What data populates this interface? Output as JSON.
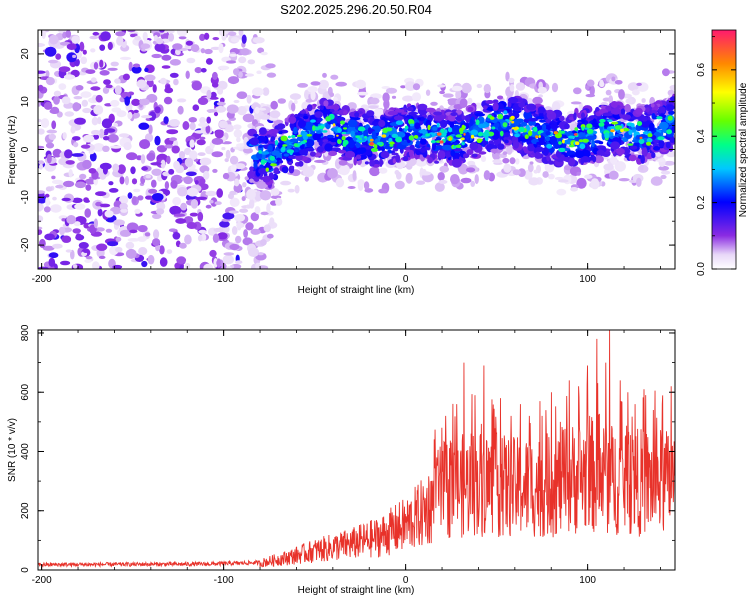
{
  "title": "S202.2025.296.20.50.R04",
  "chart_data": [
    {
      "type": "heatmap",
      "title": "S202.2025.296.20.50.R04",
      "xlabel": "Height of straight line (km)",
      "ylabel": "Frequency (Hz)",
      "xlim": [
        -202,
        148
      ],
      "ylim": [
        -25,
        25
      ],
      "xticks": [
        "-200",
        "-100",
        "0",
        "100"
      ],
      "yticks": [
        "-20",
        "-10",
        "0",
        "10",
        "20"
      ],
      "colorbar": {
        "label": "Normalized spectral amplitude",
        "range": [
          0.0,
          0.72
        ],
        "ticks": [
          "0.0",
          "0.2",
          "0.4",
          "0.6"
        ]
      },
      "features": {
        "noise_region_km": [
          -202,
          -85
        ],
        "signal_band_start_km": -85,
        "signal_center_hz": [
          [
            -85,
            0
          ],
          [
            -75,
            -2
          ],
          [
            -60,
            2
          ],
          [
            -45,
            5
          ],
          [
            -30,
            3
          ],
          [
            -15,
            2
          ],
          [
            -5,
            3
          ],
          [
            5,
            4
          ],
          [
            15,
            3
          ],
          [
            25,
            2
          ],
          [
            40,
            4
          ],
          [
            55,
            6
          ],
          [
            70,
            4
          ],
          [
            85,
            2
          ],
          [
            100,
            3
          ],
          [
            115,
            4
          ],
          [
            130,
            3
          ],
          [
            148,
            6
          ]
        ]
      }
    },
    {
      "type": "line",
      "xlabel": "Height of straight line (km)",
      "ylabel": "SNR (10 * v/v)",
      "xlim": [
        -202,
        148
      ],
      "ylim": [
        0,
        810
      ],
      "xticks": [
        "-200",
        "-100",
        "0",
        "100"
      ],
      "yticks": [
        "0",
        "200",
        "400",
        "600",
        "800"
      ],
      "color": "#e8322a",
      "envelope": [
        [
          -202,
          18
        ],
        [
          -110,
          20
        ],
        [
          -80,
          25
        ],
        [
          -65,
          45
        ],
        [
          -50,
          70
        ],
        [
          -30,
          95
        ],
        [
          -15,
          120
        ],
        [
          0,
          165
        ],
        [
          10,
          210
        ],
        [
          20,
          290
        ],
        [
          40,
          320
        ],
        [
          60,
          300
        ],
        [
          80,
          310
        ],
        [
          100,
          350
        ],
        [
          115,
          330
        ],
        [
          130,
          320
        ],
        [
          148,
          320
        ]
      ],
      "peaks": [
        [
          17,
          380
        ],
        [
          20,
          480
        ],
        [
          22,
          520
        ],
        [
          25,
          430
        ],
        [
          28,
          560
        ],
        [
          32,
          700
        ],
        [
          38,
          590
        ],
        [
          43,
          690
        ],
        [
          48,
          500
        ],
        [
          52,
          580
        ],
        [
          58,
          520
        ],
        [
          63,
          560
        ],
        [
          68,
          520
        ],
        [
          75,
          520
        ],
        [
          80,
          600
        ],
        [
          85,
          500
        ],
        [
          90,
          640
        ],
        [
          95,
          620
        ],
        [
          100,
          690
        ],
        [
          105,
          780
        ],
        [
          110,
          700
        ],
        [
          112,
          810
        ],
        [
          118,
          640
        ],
        [
          122,
          600
        ],
        [
          126,
          560
        ],
        [
          131,
          610
        ],
        [
          136,
          540
        ],
        [
          141,
          560
        ],
        [
          146,
          620
        ]
      ]
    }
  ]
}
